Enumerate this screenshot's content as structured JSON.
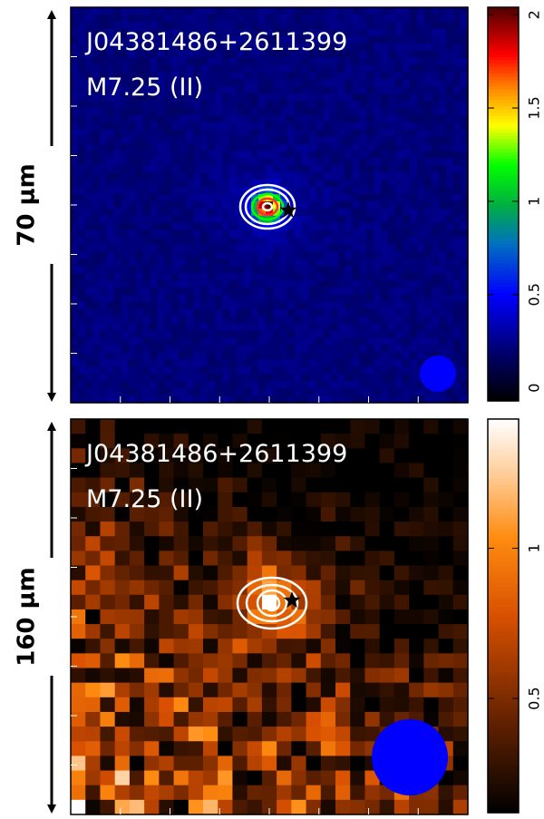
{
  "panels": [
    {
      "band_label": "70 μm",
      "source": "J04381486+2611399",
      "spectral_type": "M7.25 (II)",
      "colorbar": {
        "lim": [
          -0.07,
          2.04
        ],
        "ticks": [
          0,
          0.5,
          1,
          1.5,
          2
        ]
      }
    },
    {
      "band_label": "160 μm",
      "source": "J04381486+2611399",
      "spectral_type": "M7.25 (II)",
      "colorbar": {
        "lim": [
          0.12,
          1.43
        ],
        "ticks": [
          0.5,
          1
        ]
      }
    }
  ]
}
